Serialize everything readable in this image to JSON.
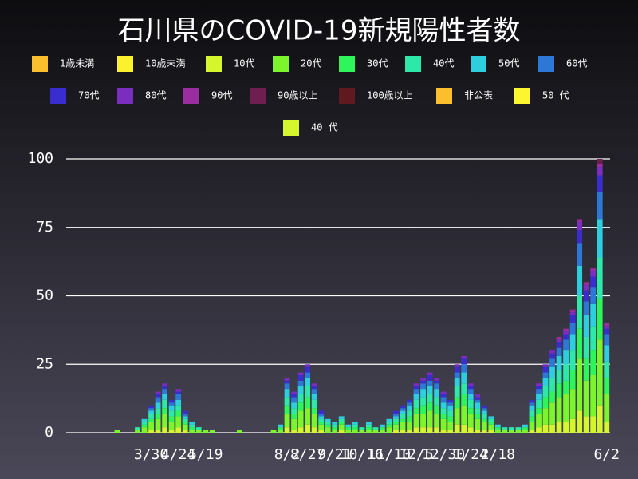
{
  "chart_data": {
    "type": "stacked-bar",
    "title": "石川県のCOVID-19新規陽性者数",
    "categories": [
      null,
      null,
      null,
      null,
      null,
      null,
      null,
      null,
      null,
      null,
      null,
      null,
      "3/30",
      null,
      null,
      null,
      "4/24",
      null,
      null,
      null,
      "5/19",
      null,
      null,
      null,
      null,
      null,
      null,
      null,
      null,
      null,
      null,
      null,
      "8/2",
      null,
      null,
      "8/27",
      null,
      null,
      null,
      "9/21",
      null,
      null,
      null,
      "10/16",
      null,
      null,
      null,
      "11/10",
      null,
      null,
      null,
      "12/5",
      null,
      null,
      null,
      "12/30",
      null,
      null,
      null,
      "1/24",
      null,
      null,
      null,
      "2/18",
      null,
      null,
      null,
      null,
      null,
      null,
      null,
      null,
      null,
      null,
      null,
      null,
      null,
      null,
      null,
      "6/2"
    ],
    "ylim": [
      0,
      100
    ],
    "yticks": [
      0,
      25,
      50,
      75,
      100
    ],
    "grid": true,
    "series": [
      {
        "name": "1歳未満",
        "color": "#fbbf2d",
        "values": [
          0,
          0,
          0,
          0,
          0,
          0,
          0,
          0,
          0,
          0,
          0,
          0,
          0,
          0,
          0,
          0,
          0,
          0,
          0,
          0,
          0,
          0,
          0,
          0,
          0,
          0,
          0,
          0,
          0,
          0,
          0,
          0,
          0,
          0,
          0,
          0,
          0,
          0,
          0,
          0,
          0,
          0,
          0,
          0,
          0,
          0,
          0,
          0,
          0,
          0,
          0,
          0,
          0,
          0,
          0,
          0,
          0,
          0,
          0,
          0,
          0,
          0,
          0,
          0,
          0,
          0,
          0,
          0,
          0,
          0,
          0,
          0,
          0,
          0,
          0,
          0,
          0,
          0,
          0,
          0
        ]
      },
      {
        "name": "10歳未満",
        "color": "#fbf22d",
        "values": [
          0,
          0,
          0,
          0,
          0,
          0,
          0,
          0,
          0,
          0,
          0,
          0,
          0,
          0,
          0,
          0,
          0,
          0,
          0,
          0,
          0,
          0,
          0,
          0,
          0,
          0,
          0,
          0,
          0,
          0,
          0,
          0,
          0,
          0,
          0,
          0,
          0,
          0,
          0,
          0,
          0,
          0,
          0,
          0,
          0,
          0,
          0,
          0,
          0,
          0,
          0,
          0,
          0,
          0,
          0,
          0,
          0,
          0,
          0,
          0,
          0,
          0,
          0,
          0,
          0,
          0,
          0,
          0,
          0,
          0,
          0,
          0,
          0,
          0,
          0,
          0,
          0,
          0,
          0,
          0
        ]
      },
      {
        "name": "10代",
        "color": "#d5f52d",
        "values": [
          0,
          0,
          0,
          0,
          0,
          0,
          0,
          0,
          0,
          0,
          0,
          0,
          1,
          1,
          2,
          1,
          2,
          1,
          0,
          0,
          0,
          0,
          0,
          0,
          0,
          0,
          0,
          0,
          0,
          0,
          0,
          0,
          2,
          1,
          2,
          3,
          2,
          1,
          0,
          0,
          1,
          0,
          0,
          0,
          0,
          0,
          0,
          0,
          1,
          1,
          1,
          2,
          2,
          2,
          2,
          1,
          1,
          3,
          3,
          2,
          1,
          1,
          1,
          0,
          0,
          0,
          0,
          0,
          1,
          2,
          3,
          3,
          4,
          4,
          5,
          8,
          6,
          6,
          10,
          4
        ]
      },
      {
        "name": "20代",
        "color": "#7df52d",
        "values": [
          0,
          0,
          0,
          0,
          0,
          0,
          0,
          1,
          0,
          0,
          1,
          2,
          3,
          4,
          5,
          3,
          4,
          2,
          1,
          1,
          1,
          1,
          0,
          0,
          0,
          1,
          0,
          0,
          0,
          0,
          1,
          1,
          5,
          4,
          6,
          6,
          5,
          2,
          2,
          1,
          2,
          1,
          1,
          1,
          1,
          1,
          1,
          2,
          2,
          3,
          3,
          5,
          5,
          6,
          5,
          4,
          3,
          6,
          7,
          5,
          4,
          3,
          2,
          1,
          1,
          1,
          1,
          1,
          3,
          5,
          6,
          8,
          9,
          10,
          11,
          19,
          13,
          15,
          24,
          10
        ]
      },
      {
        "name": "30代",
        "color": "#2df55a",
        "values": [
          0,
          0,
          0,
          0,
          0,
          0,
          0,
          0,
          0,
          0,
          0,
          1,
          1,
          2,
          2,
          2,
          2,
          1,
          1,
          0,
          0,
          0,
          0,
          0,
          0,
          0,
          0,
          0,
          0,
          0,
          0,
          1,
          3,
          2,
          3,
          4,
          2,
          1,
          1,
          1,
          1,
          1,
          1,
          0,
          1,
          0,
          1,
          1,
          1,
          1,
          2,
          2,
          3,
          3,
          3,
          2,
          2,
          4,
          4,
          2,
          2,
          1,
          1,
          1,
          0,
          0,
          0,
          1,
          2,
          2,
          4,
          4,
          5,
          5,
          7,
          11,
          8,
          9,
          15,
          6
        ]
      },
      {
        "name": "40代",
        "color": "#2de8a9",
        "values": [
          0,
          0,
          0,
          0,
          0,
          0,
          0,
          0,
          0,
          0,
          1,
          1,
          2,
          2,
          3,
          2,
          2,
          1,
          1,
          1,
          0,
          0,
          0,
          0,
          0,
          0,
          0,
          0,
          0,
          0,
          0,
          0,
          3,
          2,
          3,
          4,
          3,
          1,
          1,
          1,
          1,
          0,
          1,
          1,
          1,
          1,
          0,
          1,
          1,
          2,
          2,
          3,
          3,
          3,
          3,
          2,
          2,
          4,
          4,
          3,
          2,
          2,
          1,
          0,
          1,
          1,
          1,
          0,
          2,
          3,
          4,
          5,
          5,
          6,
          7,
          12,
          8,
          9,
          15,
          6
        ]
      },
      {
        "name": "50代",
        "color": "#2dcfdf",
        "values": [
          0,
          0,
          0,
          0,
          0,
          0,
          0,
          0,
          0,
          0,
          0,
          1,
          1,
          2,
          2,
          2,
          2,
          1,
          1,
          0,
          0,
          0,
          0,
          0,
          0,
          0,
          0,
          0,
          0,
          0,
          0,
          1,
          3,
          2,
          3,
          3,
          2,
          1,
          1,
          1,
          1,
          1,
          1,
          0,
          1,
          0,
          1,
          1,
          1,
          1,
          2,
          2,
          3,
          3,
          3,
          2,
          2,
          3,
          4,
          2,
          2,
          1,
          1,
          1,
          0,
          0,
          0,
          1,
          2,
          2,
          3,
          4,
          5,
          5,
          6,
          11,
          8,
          8,
          14,
          6
        ]
      },
      {
        "name": "60代",
        "color": "#2d78d7",
        "values": [
          0,
          0,
          0,
          0,
          0,
          0,
          0,
          0,
          0,
          0,
          0,
          0,
          1,
          2,
          2,
          1,
          2,
          1,
          0,
          0,
          0,
          0,
          0,
          0,
          0,
          0,
          0,
          0,
          0,
          0,
          0,
          0,
          2,
          2,
          2,
          2,
          2,
          1,
          0,
          0,
          0,
          0,
          0,
          0,
          0,
          0,
          0,
          0,
          1,
          1,
          1,
          2,
          2,
          2,
          2,
          2,
          1,
          2,
          3,
          2,
          1,
          1,
          0,
          0,
          0,
          0,
          0,
          0,
          1,
          2,
          2,
          3,
          3,
          4,
          4,
          8,
          5,
          6,
          10,
          4
        ]
      },
      {
        "name": "70代",
        "color": "#3a2dcf",
        "values": [
          0,
          0,
          0,
          0,
          0,
          0,
          0,
          0,
          0,
          0,
          0,
          0,
          1,
          1,
          1,
          1,
          1,
          1,
          0,
          0,
          0,
          0,
          0,
          0,
          0,
          0,
          0,
          0,
          0,
          0,
          0,
          0,
          1,
          1,
          2,
          2,
          1,
          1,
          0,
          0,
          0,
          0,
          0,
          0,
          0,
          0,
          0,
          0,
          1,
          1,
          1,
          1,
          1,
          2,
          1,
          1,
          1,
          2,
          2,
          1,
          1,
          1,
          0,
          0,
          0,
          0,
          0,
          0,
          1,
          1,
          2,
          2,
          2,
          2,
          3,
          5,
          4,
          4,
          6,
          2
        ]
      },
      {
        "name": "80代",
        "color": "#7a2dbf",
        "values": [
          0,
          0,
          0,
          0,
          0,
          0,
          0,
          0,
          0,
          0,
          0,
          0,
          0,
          1,
          1,
          0,
          1,
          0,
          0,
          0,
          0,
          0,
          0,
          0,
          0,
          0,
          0,
          0,
          0,
          0,
          0,
          0,
          1,
          1,
          1,
          1,
          1,
          0,
          0,
          0,
          0,
          0,
          0,
          0,
          0,
          0,
          0,
          0,
          0,
          0,
          0,
          1,
          1,
          1,
          1,
          1,
          0,
          1,
          1,
          1,
          1,
          0,
          0,
          0,
          0,
          0,
          0,
          0,
          0,
          1,
          1,
          1,
          1,
          1,
          1,
          3,
          2,
          2,
          3,
          1
        ]
      },
      {
        "name": "90代",
        "color": "#9a2d9f",
        "values": [
          0,
          0,
          0,
          0,
          0,
          0,
          0,
          0,
          0,
          0,
          0,
          0,
          0,
          0,
          0,
          0,
          0,
          0,
          0,
          0,
          0,
          0,
          0,
          0,
          0,
          0,
          0,
          0,
          0,
          0,
          0,
          0,
          0,
          0,
          0,
          0,
          0,
          0,
          0,
          0,
          0,
          0,
          0,
          0,
          0,
          0,
          0,
          0,
          0,
          0,
          0,
          0,
          0,
          0,
          0,
          0,
          0,
          0,
          0,
          0,
          0,
          0,
          0,
          0,
          0,
          0,
          0,
          0,
          0,
          0,
          0,
          0,
          1,
          1,
          1,
          1,
          1,
          1,
          1,
          1
        ]
      },
      {
        "name": "90歳以上",
        "color": "#6f1f4f",
        "values": [
          0,
          0,
          0,
          0,
          0,
          0,
          0,
          0,
          0,
          0,
          0,
          0,
          0,
          0,
          0,
          0,
          0,
          0,
          0,
          0,
          0,
          0,
          0,
          0,
          0,
          0,
          0,
          0,
          0,
          0,
          0,
          0,
          0,
          0,
          0,
          0,
          0,
          0,
          0,
          0,
          0,
          0,
          0,
          0,
          0,
          0,
          0,
          0,
          0,
          0,
          0,
          0,
          0,
          0,
          0,
          0,
          0,
          0,
          0,
          0,
          0,
          0,
          0,
          0,
          0,
          0,
          0,
          0,
          0,
          0,
          0,
          0,
          0,
          0,
          0,
          0,
          0,
          0,
          2,
          0
        ]
      },
      {
        "name": "100歳以上",
        "color": "#5f1a1f",
        "values": [
          0,
          0,
          0,
          0,
          0,
          0,
          0,
          0,
          0,
          0,
          0,
          0,
          0,
          0,
          0,
          0,
          0,
          0,
          0,
          0,
          0,
          0,
          0,
          0,
          0,
          0,
          0,
          0,
          0,
          0,
          0,
          0,
          0,
          0,
          0,
          0,
          0,
          0,
          0,
          0,
          0,
          0,
          0,
          0,
          0,
          0,
          0,
          0,
          0,
          0,
          0,
          0,
          0,
          0,
          0,
          0,
          0,
          0,
          0,
          0,
          0,
          0,
          0,
          0,
          0,
          0,
          0,
          0,
          0,
          0,
          0,
          0,
          0,
          0,
          0,
          0,
          0,
          0,
          0,
          0
        ]
      },
      {
        "name": "非公表",
        "color": "#fbbf2d",
        "values": [
          0,
          0,
          0,
          0,
          0,
          0,
          0,
          0,
          0,
          0,
          0,
          0,
          0,
          0,
          0,
          0,
          0,
          0,
          0,
          0,
          0,
          0,
          0,
          0,
          0,
          0,
          0,
          0,
          0,
          0,
          0,
          0,
          0,
          0,
          0,
          0,
          0,
          0,
          0,
          0,
          0,
          0,
          0,
          0,
          0,
          0,
          0,
          0,
          0,
          0,
          0,
          0,
          0,
          0,
          0,
          0,
          0,
          0,
          0,
          0,
          0,
          0,
          0,
          0,
          0,
          0,
          0,
          0,
          0,
          0,
          0,
          0,
          0,
          0,
          0,
          0,
          0,
          0,
          0,
          0
        ]
      },
      {
        "name": "50 代",
        "color": "#fbf62d",
        "values": [
          0,
          0,
          0,
          0,
          0,
          0,
          0,
          0,
          0,
          0,
          0,
          0,
          0,
          0,
          0,
          0,
          0,
          0,
          0,
          0,
          0,
          0,
          0,
          0,
          0,
          0,
          0,
          0,
          0,
          0,
          0,
          0,
          0,
          0,
          0,
          0,
          0,
          0,
          0,
          0,
          0,
          0,
          0,
          0,
          0,
          0,
          0,
          0,
          0,
          0,
          0,
          0,
          0,
          0,
          0,
          0,
          0,
          0,
          0,
          0,
          0,
          0,
          0,
          0,
          0,
          0,
          0,
          0,
          0,
          0,
          0,
          0,
          0,
          0,
          0,
          0,
          0,
          0,
          0,
          0
        ]
      },
      {
        "name": "40 代",
        "color": "#d5f52d",
        "values": [
          0,
          0,
          0,
          0,
          0,
          0,
          0,
          0,
          0,
          0,
          0,
          0,
          0,
          0,
          0,
          0,
          0,
          0,
          0,
          0,
          0,
          0,
          0,
          0,
          0,
          0,
          0,
          0,
          0,
          0,
          0,
          0,
          0,
          0,
          0,
          0,
          0,
          0,
          0,
          0,
          0,
          0,
          0,
          0,
          0,
          0,
          0,
          0,
          0,
          0,
          0,
          0,
          0,
          0,
          0,
          0,
          0,
          0,
          0,
          0,
          0,
          0,
          0,
          0,
          0,
          0,
          0,
          0,
          0,
          0,
          0,
          0,
          0,
          0,
          0,
          0,
          0,
          0,
          0,
          0
        ]
      }
    ]
  }
}
